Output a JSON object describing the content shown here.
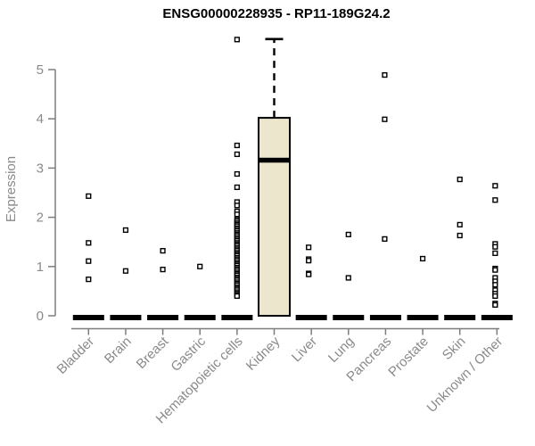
{
  "chart_data": {
    "type": "box",
    "title": "ENSG00000228935 - RP11-189G24.2",
    "ylabel": "Expression",
    "xlabel": "",
    "ylim": [
      0,
      5.65
    ],
    "yticks": [
      0,
      1,
      2,
      3,
      4,
      5
    ],
    "grid": false,
    "legend": "none",
    "axis_color": "#7d7d7d",
    "label_color": "#8a8a8a",
    "box_fill": "#ece6cc",
    "box_border": "#000000",
    "point_style": "open-square",
    "categories": [
      {
        "label": "Bladder",
        "box": {
          "q1": 0,
          "median": 0,
          "q3": 0
        },
        "points": [
          2.43,
          1.48,
          1.11,
          0.74
        ]
      },
      {
        "label": "Brain",
        "box": {
          "q1": 0,
          "median": 0,
          "q3": 0
        },
        "points": [
          1.74,
          0.91
        ]
      },
      {
        "label": "Breast",
        "box": {
          "q1": 0,
          "median": 0,
          "q3": 0
        },
        "points": [
          1.32,
          0.94
        ]
      },
      {
        "label": "Gastric",
        "box": {
          "q1": 0,
          "median": 0,
          "q3": 0
        },
        "points": [
          1.0
        ]
      },
      {
        "label": "Hematopoietic cells",
        "box": {
          "q1": 0,
          "median": 0,
          "q3": 0
        },
        "points": [
          5.61,
          3.46,
          3.28,
          2.88,
          2.61,
          2.31,
          2.24,
          2.12,
          2.06,
          1.95,
          1.92,
          1.88,
          1.85,
          1.82,
          1.78,
          1.75,
          1.72,
          1.68,
          1.65,
          1.62,
          1.58,
          1.55,
          1.52,
          1.48,
          1.45,
          1.42,
          1.38,
          1.35,
          1.32,
          1.28,
          1.25,
          1.22,
          1.18,
          1.15,
          1.12,
          1.08,
          1.05,
          1.02,
          0.98,
          0.95,
          0.92,
          0.88,
          0.85,
          0.82,
          0.78,
          0.75,
          0.72,
          0.68,
          0.65,
          0.62,
          0.58,
          0.55,
          0.52,
          0.48,
          0.45,
          0.42,
          0.4
        ]
      },
      {
        "label": "Kidney",
        "box": {
          "q1": 0,
          "median": 3.16,
          "q3": 4.02,
          "upper_whisker": 5.62
        },
        "points": []
      },
      {
        "label": "Liver",
        "dx": -3,
        "box": {
          "q1": 0,
          "median": 0,
          "q3": 0
        },
        "points": [
          1.39,
          1.15,
          1.12,
          0.86,
          0.84
        ]
      },
      {
        "label": "Lung",
        "box": {
          "q1": 0,
          "median": 0,
          "q3": 0
        },
        "points": [
          1.65,
          0.77
        ]
      },
      {
        "label": "Pancreas",
        "dx": -1,
        "box": {
          "q1": 0,
          "median": 0,
          "q3": 0
        },
        "points": [
          4.89,
          3.99,
          1.56
        ]
      },
      {
        "label": "Prostate",
        "box": {
          "q1": 0,
          "median": 0,
          "q3": 0
        },
        "points": [
          1.16
        ]
      },
      {
        "label": "Skin",
        "box": {
          "q1": 0,
          "median": 0,
          "q3": 0
        },
        "points": [
          2.77,
          1.85,
          1.63
        ]
      },
      {
        "label": "Unknown / Other",
        "dx": -2,
        "box": {
          "q1": 0,
          "median": 0,
          "q3": 0
        },
        "points": [
          2.64,
          2.35,
          1.46,
          1.4,
          1.27,
          0.96,
          0.93,
          0.77,
          0.7,
          0.63,
          0.52,
          0.45,
          0.4,
          0.25,
          0.22
        ]
      }
    ]
  }
}
